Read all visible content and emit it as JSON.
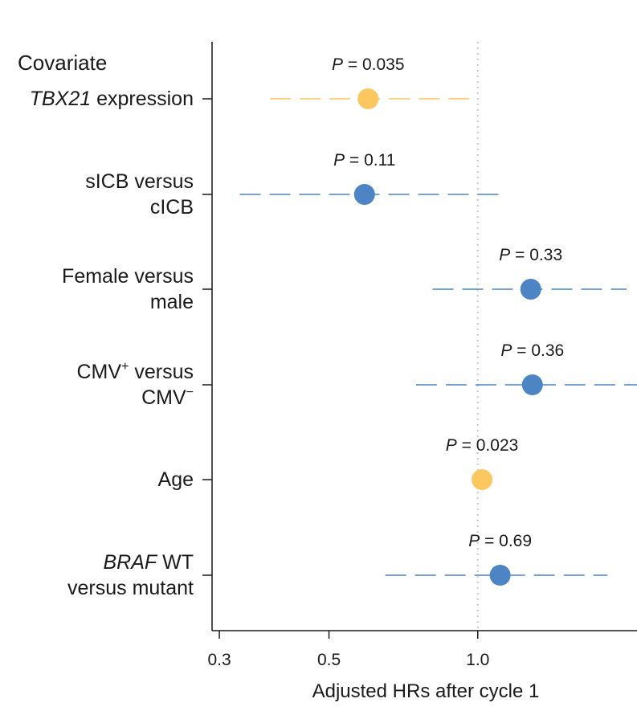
{
  "chart_data": {
    "type": "forest",
    "title": "Covariate",
    "xlabel": "Adjusted HRs after cycle 1",
    "x_scale": "log",
    "xlim": [
      0.29,
      2.1
    ],
    "xticks": [
      0.3,
      0.5,
      1.0
    ],
    "xtick_labels": [
      "0.3",
      "0.5",
      "1.0"
    ],
    "reference_line": 1.0,
    "colors": {
      "orange": "#fcc661",
      "blue": "#4c84c4"
    },
    "rows": [
      {
        "label_lines": [
          {
            "italic": "TBX21",
            "rest": " expression"
          }
        ],
        "hr": 0.6,
        "ci": [
          0.38,
          0.98
        ],
        "p_prefix": "P",
        "p_text": " = 0.035",
        "color": "orange"
      },
      {
        "label_lines": [
          {
            "italic": "",
            "rest": "sICB versus"
          },
          {
            "italic": "",
            "rest": "cICB"
          }
        ],
        "hr": 0.59,
        "ci": [
          0.33,
          1.13
        ],
        "p_prefix": "P",
        "p_text": " = 0.11",
        "color": "blue"
      },
      {
        "label_lines": [
          {
            "italic": "",
            "rest": "Female versus"
          },
          {
            "italic": "",
            "rest": "male"
          }
        ],
        "hr": 1.28,
        "ci": [
          0.81,
          2.0
        ],
        "p_prefix": "P",
        "p_text": " = 0.33",
        "color": "blue"
      },
      {
        "label_lines": [
          {
            "italic": "",
            "rest": "CMV",
            "sup": "+",
            "after": " versus"
          },
          {
            "italic": "",
            "rest": "CMV",
            "sup": "−"
          }
        ],
        "hr": 1.29,
        "ci": [
          0.75,
          2.1
        ],
        "p_prefix": "P",
        "p_text": " = 0.36",
        "color": "blue"
      },
      {
        "label_lines": [
          {
            "italic": "",
            "rest": "Age"
          }
        ],
        "hr": 1.02,
        "ci": null,
        "p_prefix": "P",
        "p_text": " = 0.023",
        "color": "orange"
      },
      {
        "label_lines": [
          {
            "italic": "BRAF",
            "rest": " WT"
          },
          {
            "italic": "",
            "rest": "versus mutant"
          }
        ],
        "hr": 1.11,
        "ci": [
          0.65,
          1.83
        ],
        "p_prefix": "P",
        "p_text": " = 0.69",
        "color": "blue"
      }
    ]
  }
}
